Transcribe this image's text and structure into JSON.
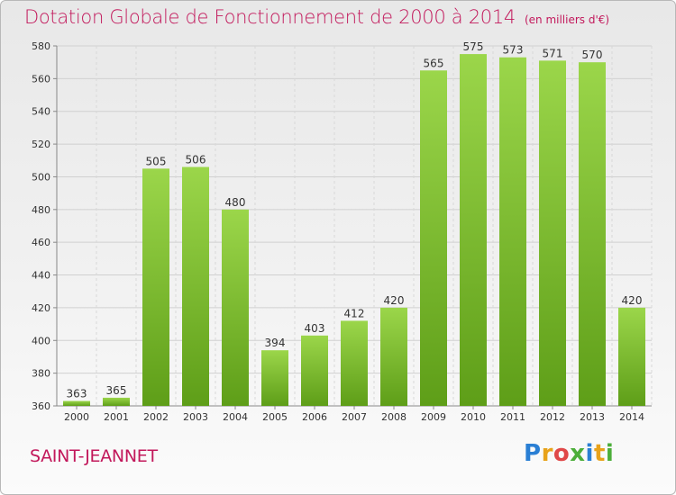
{
  "title": "Dotation Globale de Fonctionnement de 2000 à 2014",
  "unit_note": "(en milliers d'€)",
  "commune": "SAINT-JEANNET",
  "logo": {
    "letters": [
      "P",
      "r",
      "o",
      "x",
      "i",
      "t",
      "i"
    ],
    "colors": [
      "#2a7fd4",
      "#e8a21a",
      "#e04848",
      "#4cae3a",
      "#2a7fd4",
      "#e8a21a",
      "#4cae3a"
    ]
  },
  "chart_data": {
    "type": "bar",
    "title": "Dotation Globale de Fonctionnement de 2000 à 2014",
    "xlabel": "",
    "ylabel": "",
    "categories": [
      "2000",
      "2001",
      "2002",
      "2003",
      "2004",
      "2005",
      "2006",
      "2007",
      "2008",
      "2009",
      "2010",
      "2011",
      "2012",
      "2013",
      "2014"
    ],
    "values": [
      363,
      365,
      505,
      506,
      480,
      394,
      403,
      412,
      420,
      565,
      575,
      573,
      571,
      570,
      420
    ],
    "ylim": [
      360,
      580
    ],
    "yticks": [
      360,
      380,
      400,
      420,
      440,
      460,
      480,
      500,
      520,
      540,
      560,
      580
    ],
    "grid": true,
    "bar_color_top": "#9bd64a",
    "bar_color_bottom": "#5e9e18"
  }
}
